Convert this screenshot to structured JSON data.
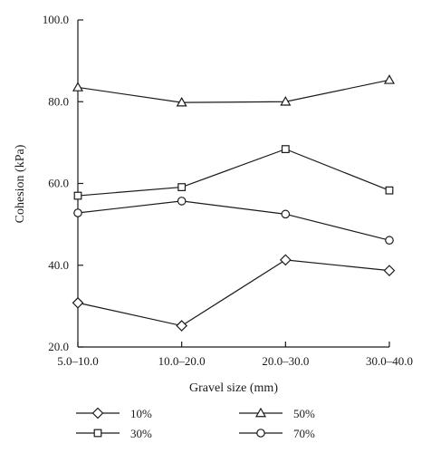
{
  "chart_data": {
    "type": "line",
    "title": "",
    "xlabel": "Gravel size (mm)",
    "ylabel": "Cohesion (kPa)",
    "categories": [
      "5.0–10.0",
      "10.0–20.0",
      "20.0–30.0",
      "30.0–40.0"
    ],
    "ylim": [
      20,
      100
    ],
    "yticks": [
      "20.0",
      "40.0",
      "60.0",
      "80.0",
      "100.0"
    ],
    "yticks_values": [
      20,
      40,
      60,
      80,
      100
    ],
    "grid": false,
    "legend_position": "bottom",
    "series": [
      {
        "name": "10%",
        "marker": "diamond",
        "values": [
          30.8,
          25.2,
          41.3,
          38.7
        ]
      },
      {
        "name": "30%",
        "marker": "square",
        "values": [
          57.0,
          59.1,
          68.4,
          58.3
        ]
      },
      {
        "name": "50%",
        "marker": "triangle",
        "values": [
          83.5,
          79.8,
          80.0,
          85.3
        ]
      },
      {
        "name": "70%",
        "marker": "circle",
        "values": [
          52.8,
          55.7,
          52.5,
          46.1
        ]
      }
    ]
  }
}
